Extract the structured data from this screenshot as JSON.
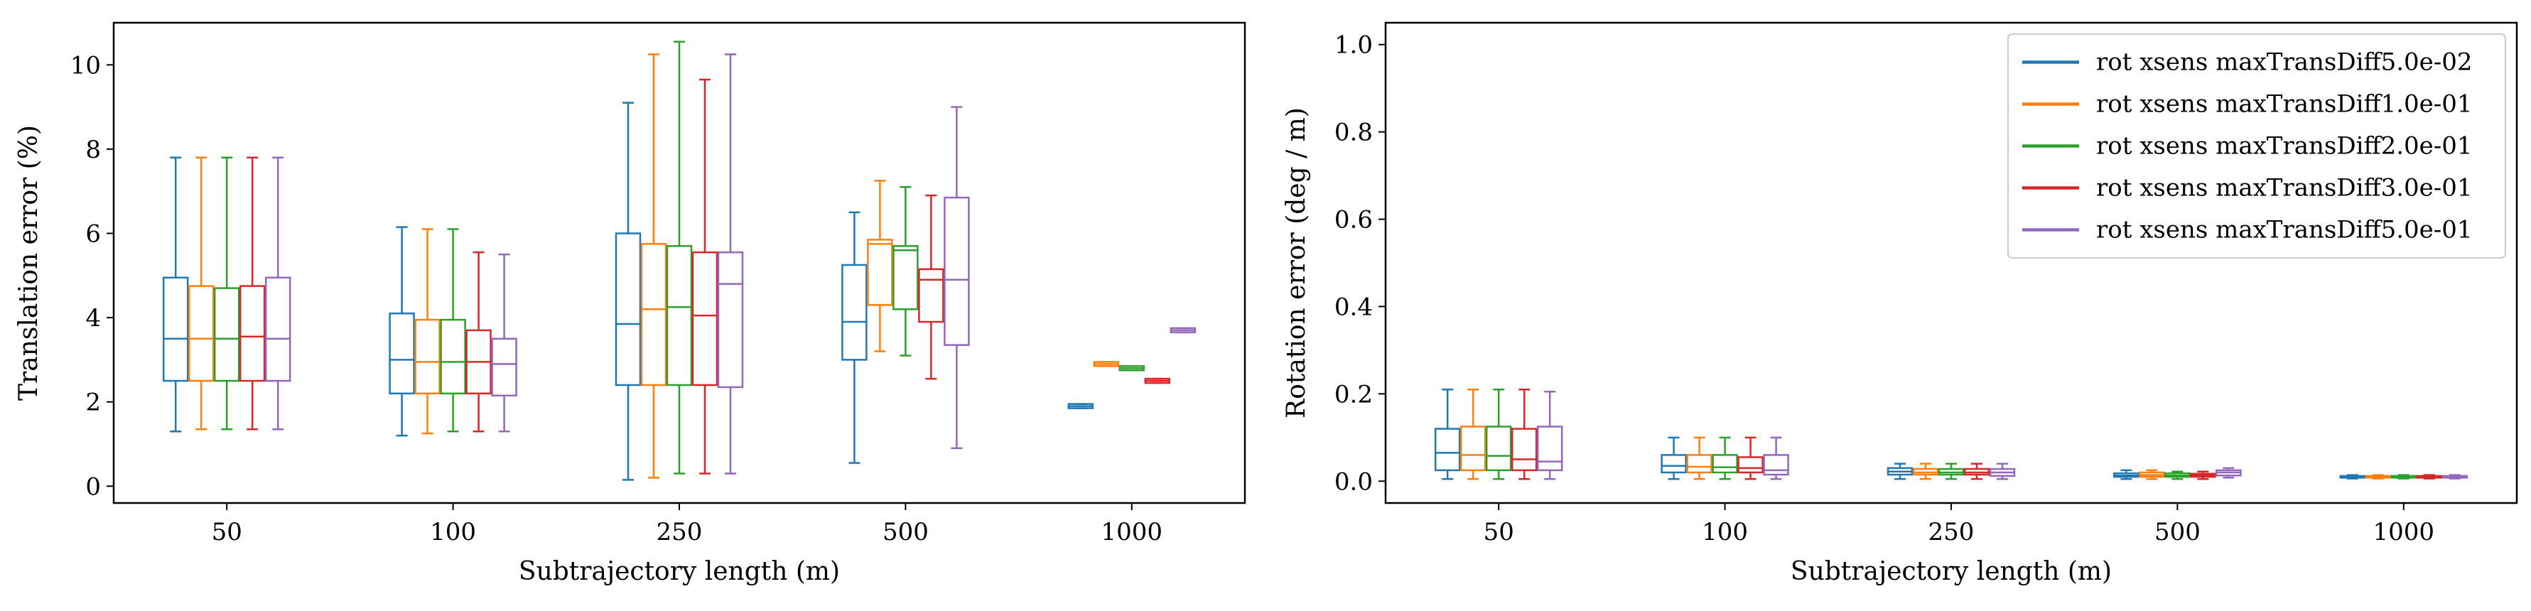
{
  "chart_data": [
    {
      "type": "box",
      "xlabel": "Subtrajectory length (m)",
      "ylabel": "Translation error (%)",
      "categories": [
        "50",
        "100",
        "250",
        "500",
        "1000"
      ],
      "yticks": [
        0,
        2,
        4,
        6,
        8,
        10
      ],
      "ylim": [
        -0.4,
        11.0
      ],
      "grid": false,
      "series": [
        {
          "name": "rot xsens maxTransDiff5.0e-02",
          "color": "#1f77b4",
          "boxes": [
            {
              "whislo": 1.3,
              "q1": 2.5,
              "med": 3.5,
              "q3": 4.95,
              "whishi": 7.8
            },
            {
              "whislo": 1.2,
              "q1": 2.2,
              "med": 3.0,
              "q3": 4.1,
              "whishi": 6.15
            },
            {
              "whislo": 0.15,
              "q1": 2.4,
              "med": 3.85,
              "q3": 6.0,
              "whishi": 9.1
            },
            {
              "whislo": 0.55,
              "q1": 3.0,
              "med": 3.9,
              "q3": 5.25,
              "whishi": 6.5
            },
            {
              "whislo": 1.85,
              "q1": 1.85,
              "med": 1.9,
              "q3": 1.95,
              "whishi": 1.95
            }
          ]
        },
        {
          "name": "rot xsens maxTransDiff1.0e-01",
          "color": "#ff7f0e",
          "boxes": [
            {
              "whislo": 1.35,
              "q1": 2.5,
              "med": 3.5,
              "q3": 4.75,
              "whishi": 7.8
            },
            {
              "whislo": 1.25,
              "q1": 2.2,
              "med": 2.95,
              "q3": 3.95,
              "whishi": 6.1
            },
            {
              "whislo": 0.2,
              "q1": 2.4,
              "med": 4.2,
              "q3": 5.75,
              "whishi": 10.25
            },
            {
              "whislo": 3.2,
              "q1": 4.3,
              "med": 5.75,
              "q3": 5.85,
              "whishi": 7.25
            },
            {
              "whislo": 2.85,
              "q1": 2.85,
              "med": 2.9,
              "q3": 2.95,
              "whishi": 2.95
            }
          ]
        },
        {
          "name": "rot xsens maxTransDiff2.0e-01",
          "color": "#2ca02c",
          "boxes": [
            {
              "whislo": 1.35,
              "q1": 2.5,
              "med": 3.5,
              "q3": 4.7,
              "whishi": 7.8
            },
            {
              "whislo": 1.3,
              "q1": 2.2,
              "med": 2.95,
              "q3": 3.95,
              "whishi": 6.1
            },
            {
              "whislo": 0.3,
              "q1": 2.4,
              "med": 4.25,
              "q3": 5.7,
              "whishi": 10.55
            },
            {
              "whislo": 3.1,
              "q1": 4.2,
              "med": 5.6,
              "q3": 5.7,
              "whishi": 7.1
            },
            {
              "whislo": 2.75,
              "q1": 2.75,
              "med": 2.8,
              "q3": 2.85,
              "whishi": 2.85
            }
          ]
        },
        {
          "name": "rot xsens maxTransDiff3.0e-01",
          "color": "#d62728",
          "boxes": [
            {
              "whislo": 1.35,
              "q1": 2.5,
              "med": 3.55,
              "q3": 4.75,
              "whishi": 7.8
            },
            {
              "whislo": 1.3,
              "q1": 2.2,
              "med": 2.95,
              "q3": 3.7,
              "whishi": 5.55
            },
            {
              "whislo": 0.3,
              "q1": 2.4,
              "med": 4.05,
              "q3": 5.55,
              "whishi": 9.65
            },
            {
              "whislo": 2.55,
              "q1": 3.9,
              "med": 4.9,
              "q3": 5.15,
              "whishi": 6.9
            },
            {
              "whislo": 2.45,
              "q1": 2.45,
              "med": 2.5,
              "q3": 2.55,
              "whishi": 2.55
            }
          ]
        },
        {
          "name": "rot xsens maxTransDiff5.0e-01",
          "color": "#9467bd",
          "boxes": [
            {
              "whislo": 1.35,
              "q1": 2.5,
              "med": 3.5,
              "q3": 4.95,
              "whishi": 7.8
            },
            {
              "whislo": 1.3,
              "q1": 2.15,
              "med": 2.9,
              "q3": 3.5,
              "whishi": 5.5
            },
            {
              "whislo": 0.3,
              "q1": 2.35,
              "med": 4.8,
              "q3": 5.55,
              "whishi": 10.25
            },
            {
              "whislo": 0.9,
              "q1": 3.35,
              "med": 4.9,
              "q3": 6.85,
              "whishi": 9.0
            },
            {
              "whislo": 3.65,
              "q1": 3.65,
              "med": 3.7,
              "q3": 3.75,
              "whishi": 3.75
            }
          ]
        }
      ]
    },
    {
      "type": "box",
      "xlabel": "Subtrajectory length (m)",
      "ylabel": "Rotation error (deg / m)",
      "categories": [
        "50",
        "100",
        "250",
        "500",
        "1000"
      ],
      "yticks": [
        0.0,
        0.2,
        0.4,
        0.6,
        0.8,
        1.0
      ],
      "ylim": [
        -0.05,
        1.05
      ],
      "grid": false,
      "legend": "top-right",
      "series": [
        {
          "name": "rot xsens maxTransDiff5.0e-02",
          "color": "#1f77b4",
          "boxes": [
            {
              "whislo": 0.005,
              "q1": 0.025,
              "med": 0.065,
              "q3": 0.12,
              "whishi": 0.21
            },
            {
              "whislo": 0.005,
              "q1": 0.02,
              "med": 0.035,
              "q3": 0.06,
              "whishi": 0.1
            },
            {
              "whislo": 0.005,
              "q1": 0.015,
              "med": 0.022,
              "q3": 0.03,
              "whishi": 0.04
            },
            {
              "whislo": 0.005,
              "q1": 0.01,
              "med": 0.013,
              "q3": 0.018,
              "whishi": 0.025
            },
            {
              "whislo": 0.006,
              "q1": 0.008,
              "med": 0.01,
              "q3": 0.012,
              "whishi": 0.014
            }
          ]
        },
        {
          "name": "rot xsens maxTransDiff1.0e-01",
          "color": "#ff7f0e",
          "boxes": [
            {
              "whislo": 0.005,
              "q1": 0.025,
              "med": 0.06,
              "q3": 0.125,
              "whishi": 0.21
            },
            {
              "whislo": 0.005,
              "q1": 0.02,
              "med": 0.033,
              "q3": 0.06,
              "whishi": 0.1
            },
            {
              "whislo": 0.005,
              "q1": 0.015,
              "med": 0.02,
              "q3": 0.028,
              "whishi": 0.04
            },
            {
              "whislo": 0.005,
              "q1": 0.01,
              "med": 0.014,
              "q3": 0.02,
              "whishi": 0.025
            },
            {
              "whislo": 0.006,
              "q1": 0.008,
              "med": 0.01,
              "q3": 0.012,
              "whishi": 0.014
            }
          ]
        },
        {
          "name": "rot xsens maxTransDiff2.0e-01",
          "color": "#2ca02c",
          "boxes": [
            {
              "whislo": 0.005,
              "q1": 0.025,
              "med": 0.058,
              "q3": 0.125,
              "whishi": 0.21
            },
            {
              "whislo": 0.005,
              "q1": 0.02,
              "med": 0.032,
              "q3": 0.06,
              "whishi": 0.1
            },
            {
              "whislo": 0.005,
              "q1": 0.015,
              "med": 0.02,
              "q3": 0.028,
              "whishi": 0.04
            },
            {
              "whislo": 0.005,
              "q1": 0.01,
              "med": 0.013,
              "q3": 0.018,
              "whishi": 0.022
            },
            {
              "whislo": 0.006,
              "q1": 0.008,
              "med": 0.01,
              "q3": 0.012,
              "whishi": 0.014
            }
          ]
        },
        {
          "name": "rot xsens maxTransDiff3.0e-01",
          "color": "#d62728",
          "boxes": [
            {
              "whislo": 0.005,
              "q1": 0.025,
              "med": 0.05,
              "q3": 0.12,
              "whishi": 0.21
            },
            {
              "whislo": 0.005,
              "q1": 0.02,
              "med": 0.03,
              "q3": 0.055,
              "whishi": 0.1
            },
            {
              "whislo": 0.005,
              "q1": 0.015,
              "med": 0.02,
              "q3": 0.028,
              "whishi": 0.04
            },
            {
              "whislo": 0.005,
              "q1": 0.01,
              "med": 0.013,
              "q3": 0.017,
              "whishi": 0.022
            },
            {
              "whislo": 0.006,
              "q1": 0.008,
              "med": 0.01,
              "q3": 0.012,
              "whishi": 0.014
            }
          ]
        },
        {
          "name": "rot xsens maxTransDiff5.0e-01",
          "color": "#9467bd",
          "boxes": [
            {
              "whislo": 0.005,
              "q1": 0.025,
              "med": 0.045,
              "q3": 0.125,
              "whishi": 0.205
            },
            {
              "whislo": 0.005,
              "q1": 0.015,
              "med": 0.025,
              "q3": 0.06,
              "whishi": 0.1
            },
            {
              "whislo": 0.005,
              "q1": 0.012,
              "med": 0.02,
              "q3": 0.028,
              "whishi": 0.04
            },
            {
              "whislo": 0.008,
              "q1": 0.013,
              "med": 0.02,
              "q3": 0.025,
              "whishi": 0.03
            },
            {
              "whislo": 0.006,
              "q1": 0.008,
              "med": 0.01,
              "q3": 0.012,
              "whishi": 0.014
            }
          ]
        }
      ]
    }
  ]
}
